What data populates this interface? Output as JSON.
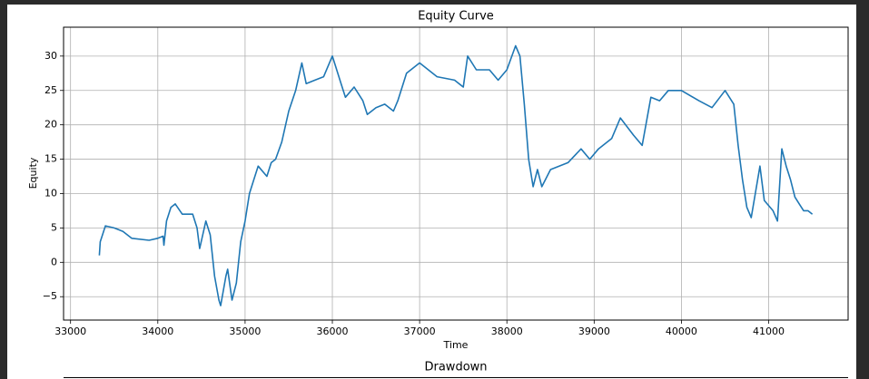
{
  "chart_data": [
    {
      "type": "line",
      "title": "Equity Curve",
      "x_label": "Time",
      "y_label": "Equity",
      "color": "#1f77b4",
      "grid": true,
      "xlim": [
        32920,
        41910
      ],
      "ylim": [
        -8.4,
        34.2
      ],
      "xticks": [
        33000,
        34000,
        35000,
        36000,
        37000,
        38000,
        39000,
        40000,
        41000
      ],
      "yticks": [
        {
          "value": -5,
          "label": "−5"
        },
        0,
        5,
        10,
        15,
        20,
        25,
        30
      ],
      "x": [
        33330,
        33340,
        33400,
        33500,
        33600,
        33700,
        33900,
        34000,
        34060,
        34070,
        34100,
        34150,
        34200,
        34280,
        34400,
        34450,
        34480,
        34550,
        34600,
        34650,
        34700,
        34720,
        34780,
        34800,
        34850,
        34900,
        34950,
        35000,
        35050,
        35100,
        35150,
        35250,
        35300,
        35350,
        35420,
        35500,
        35580,
        35650,
        35700,
        35800,
        35900,
        36000,
        36100,
        36150,
        36250,
        36350,
        36400,
        36500,
        36600,
        36700,
        36750,
        36850,
        37000,
        37100,
        37200,
        37400,
        37500,
        37550,
        37650,
        37800,
        37900,
        38000,
        38100,
        38150,
        38200,
        38250,
        38300,
        38350,
        38400,
        38500,
        38700,
        38850,
        38950,
        39050,
        39200,
        39300,
        39450,
        39550,
        39650,
        39750,
        39850,
        40000,
        40200,
        40350,
        40500,
        40600,
        40650,
        40700,
        40750,
        40800,
        40900,
        40950,
        41050,
        41100,
        41150,
        41200,
        41250,
        41300,
        41350,
        41400,
        41450,
        41500
      ],
      "values": [
        1,
        3,
        5.3,
        5,
        4.5,
        3.5,
        3.2,
        3.5,
        3.8,
        2.5,
        6,
        8,
        8.5,
        7,
        7,
        5,
        2,
        6,
        4,
        -2,
        -5.5,
        -6.3,
        -2,
        -1,
        -5.5,
        -3,
        3,
        6,
        10,
        12,
        14,
        12.5,
        14.5,
        15,
        17.5,
        22,
        25,
        29,
        26,
        26.5,
        27,
        30,
        26,
        24,
        25.5,
        23.5,
        21.5,
        22.5,
        23,
        22,
        23.5,
        27.5,
        29,
        28,
        27,
        26.5,
        25.5,
        30,
        28,
        28,
        26.5,
        28,
        31.5,
        30,
        23,
        15,
        11,
        13.5,
        11,
        13.5,
        14.5,
        16.5,
        15,
        16.5,
        18,
        21,
        18.5,
        17,
        24,
        23.5,
        25,
        25,
        23.5,
        22.5,
        25,
        23,
        17,
        12,
        8,
        6.5,
        14,
        9,
        7.5,
        6,
        16.5,
        14,
        12,
        9.5,
        8.5,
        7.5,
        7.5,
        7
      ]
    },
    {
      "type": "line",
      "title": "Drawdown"
    }
  ]
}
